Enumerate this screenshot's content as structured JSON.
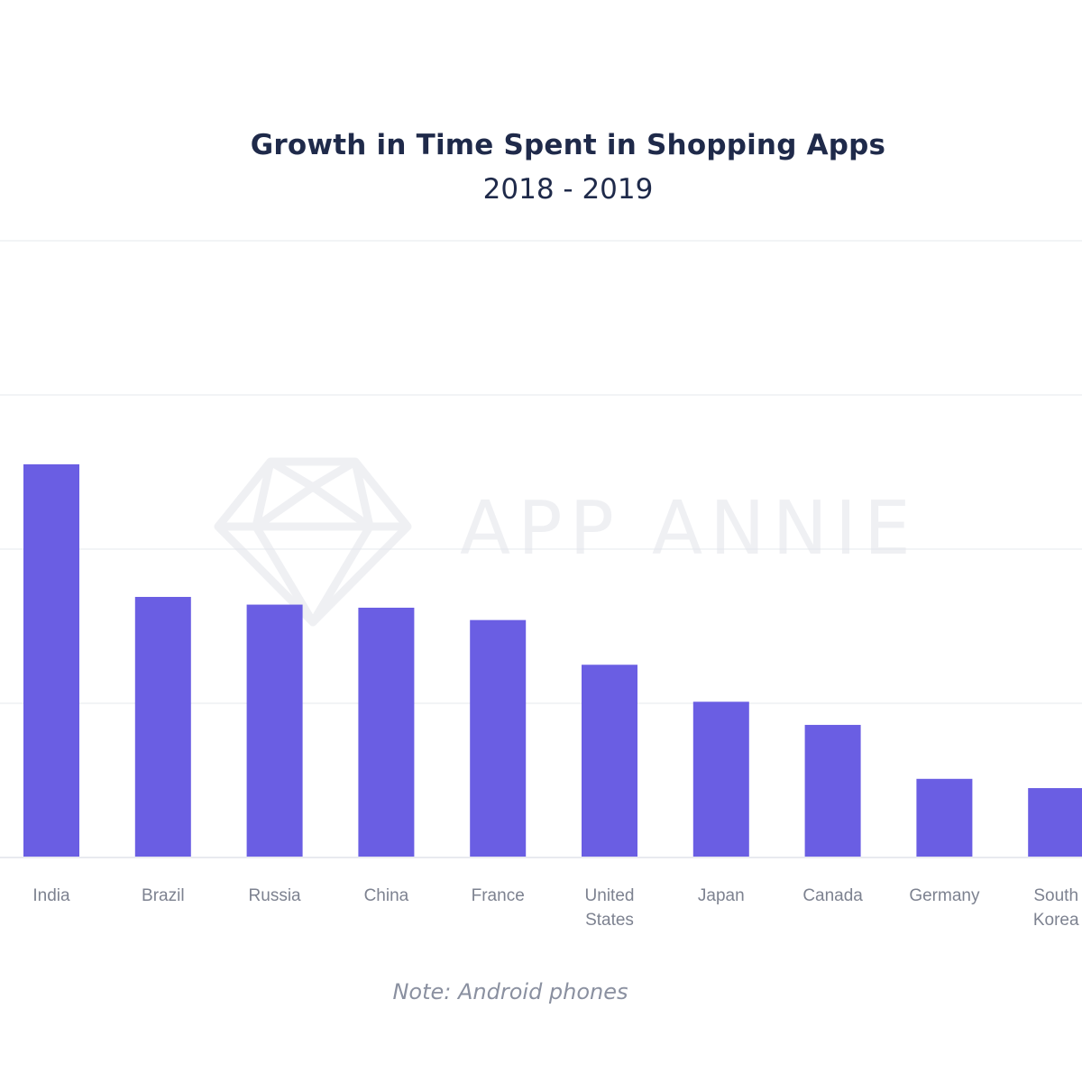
{
  "chart_data": {
    "type": "bar",
    "title": "Growth in Time Spent in Shopping Apps",
    "subtitle": "2018 - 2019",
    "note": "Note: Android phones",
    "watermark": "APP ANNIE",
    "categories": [
      "India",
      "Brazil",
      "Russia",
      "China",
      "France",
      "United States",
      "Japan",
      "Canada",
      "Germany",
      "South Korea"
    ],
    "category_lines": [
      [
        "India"
      ],
      [
        "Brazil"
      ],
      [
        "Russia"
      ],
      [
        "China"
      ],
      [
        "France"
      ],
      [
        "United",
        "States"
      ],
      [
        "Japan"
      ],
      [
        "Canada"
      ],
      [
        "Germany"
      ],
      [
        "South",
        "Korea"
      ]
    ],
    "values": [
      2.55,
      1.69,
      1.64,
      1.62,
      1.54,
      1.25,
      1.01,
      0.86,
      0.51,
      0.45
    ],
    "ylim": [
      0,
      4
    ],
    "xlabel": "",
    "ylabel": "",
    "grid": true,
    "bar_color": "#6a5ee3"
  }
}
